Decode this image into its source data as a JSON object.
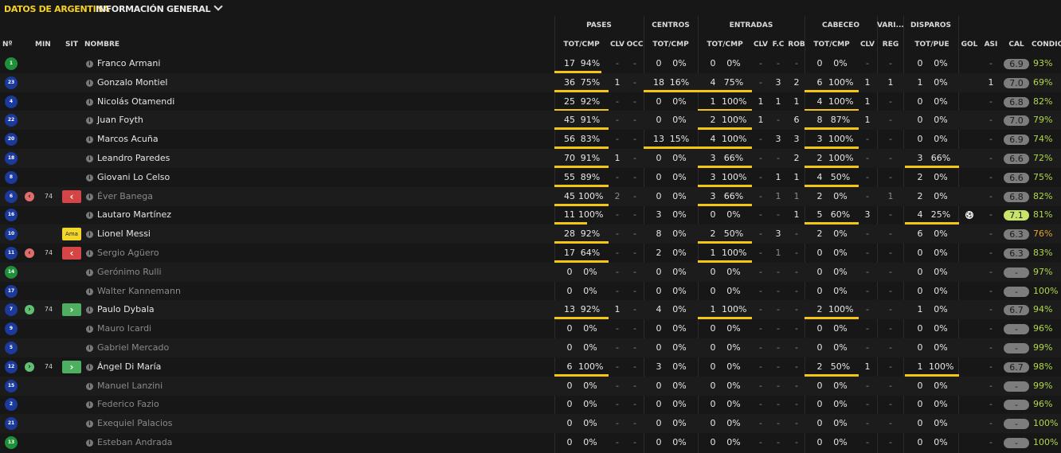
{
  "header": {
    "title": "DATOS DE ARGENTINA",
    "dropdown_label": "INFORMACIÓN GENERAL"
  },
  "groups": {
    "pases": "PASES",
    "centros": "CENTROS",
    "entradas": "ENTRADAS",
    "cabeceo": "CABECEO",
    "varios": "VARI...",
    "disparos": "DISPAROS"
  },
  "columns": {
    "num": "Nº",
    "min": "MIN",
    "sit": "SIT",
    "nombre": "NOMBRE",
    "pases_tot": "TOT/CMP",
    "pases_clv": "CLV",
    "pases_occ": "OCC",
    "centros_tot": "TOT/CMP",
    "entradas_tot": "TOT/CMP",
    "entradas_clv": "CLV",
    "entradas_fc": "F.C",
    "entradas_rob": "ROB",
    "cabeceo_tot": "TOT/CMP",
    "cabeceo_clv": "CLV",
    "varios_reg": "REG",
    "disparos_tot": "TOT/PUE",
    "gol": "GOL",
    "asi": "ASI",
    "cal": "CAL",
    "condic": "CONDIC"
  },
  "colors": {
    "accent": "#f7d21f",
    "bar": "#f3c616",
    "sub_out": "#d64545",
    "sub_in": "#4daf5f",
    "condition_green": "#b0d84a",
    "condition_orange": "#e3a532"
  },
  "players": [
    {
      "num": "1",
      "kit": "green",
      "name": "Franco Armani",
      "active": true,
      "sub": "",
      "min": "",
      "sit": "",
      "pas_t": "17",
      "pas_p": "94%",
      "pas_frac": 0.87,
      "pas_clv": "-",
      "pas_occ": "-",
      "cen_t": "0",
      "cen_p": "0%",
      "cen_frac": 0,
      "ent_t": "0",
      "ent_p": "0%",
      "ent_frac": 0,
      "ent_clv": "-",
      "ent_fc": "-",
      "ent_rob": "-",
      "cab_t": "0",
      "cab_p": "0%",
      "cab_frac": 0,
      "cab_clv": "-",
      "reg": "-",
      "dis_t": "0",
      "dis_p": "0%",
      "dis_frac": 0,
      "gol": "",
      "asi": "-",
      "cal": "6.9",
      "cond": "93%"
    },
    {
      "num": "23",
      "kit": "blue",
      "name": "Gonzalo Montiel",
      "active": true,
      "sub": "",
      "min": "",
      "sit": "",
      "pas_t": "36",
      "pas_p": "75%",
      "pas_frac": 1,
      "pas_clv": "1",
      "pas_occ": "-",
      "cen_t": "18",
      "cen_p": "16%",
      "cen_frac": 1,
      "ent_t": "4",
      "ent_p": "75%",
      "ent_frac": 1,
      "ent_clv": "-",
      "ent_fc": "3",
      "ent_rob": "2",
      "cab_t": "6",
      "cab_p": "100%",
      "cab_frac": 1,
      "cab_clv": "1",
      "reg": "1",
      "dis_t": "1",
      "dis_p": "0%",
      "dis_frac": 0,
      "gol": "",
      "asi": "1",
      "cal": "7.0",
      "cond": "69%"
    },
    {
      "num": "4",
      "kit": "blue",
      "name": "Nicolás Otamendi",
      "active": true,
      "sub": "",
      "min": "",
      "sit": "",
      "pas_t": "25",
      "pas_p": "92%",
      "pas_frac": 1,
      "pas_clv": "-",
      "pas_occ": "-",
      "cen_t": "0",
      "cen_p": "0%",
      "cen_frac": 0,
      "ent_t": "1",
      "ent_p": "100%",
      "ent_frac": 1,
      "ent_clv": "1",
      "ent_fc": "1",
      "ent_rob": "1",
      "cab_t": "4",
      "cab_p": "100%",
      "cab_frac": 1,
      "cab_clv": "1",
      "reg": "-",
      "dis_t": "0",
      "dis_p": "0%",
      "dis_frac": 0,
      "gol": "",
      "asi": "-",
      "cal": "6.8",
      "cond": "82%"
    },
    {
      "num": "22",
      "kit": "blue",
      "name": "Juan Foyth",
      "active": true,
      "sub": "",
      "min": "",
      "sit": "",
      "pas_t": "45",
      "pas_p": "91%",
      "pas_frac": 1,
      "pas_clv": "-",
      "pas_occ": "-",
      "cen_t": "0",
      "cen_p": "0%",
      "cen_frac": 0,
      "ent_t": "2",
      "ent_p": "100%",
      "ent_frac": 1,
      "ent_clv": "1",
      "ent_fc": "-",
      "ent_rob": "6",
      "cab_t": "8",
      "cab_p": "87%",
      "cab_frac": 1,
      "cab_clv": "1",
      "reg": "-",
      "dis_t": "0",
      "dis_p": "0%",
      "dis_frac": 0,
      "gol": "",
      "asi": "-",
      "cal": "7.0",
      "cond": "79%"
    },
    {
      "num": "20",
      "kit": "blue",
      "name": "Marcos Acuña",
      "active": true,
      "sub": "",
      "min": "",
      "sit": "",
      "pas_t": "56",
      "pas_p": "83%",
      "pas_frac": 1,
      "pas_clv": "-",
      "pas_occ": "-",
      "cen_t": "13",
      "cen_p": "15%",
      "cen_frac": 1,
      "ent_t": "4",
      "ent_p": "100%",
      "ent_frac": 1,
      "ent_clv": "-",
      "ent_fc": "3",
      "ent_rob": "3",
      "cab_t": "3",
      "cab_p": "100%",
      "cab_frac": 1,
      "cab_clv": "-",
      "reg": "-",
      "dis_t": "0",
      "dis_p": "0%",
      "dis_frac": 0,
      "gol": "",
      "asi": "-",
      "cal": "6.9",
      "cond": "74%"
    },
    {
      "num": "18",
      "kit": "blue",
      "name": "Leandro Paredes",
      "active": true,
      "sub": "",
      "min": "",
      "sit": "",
      "pas_t": "70",
      "pas_p": "91%",
      "pas_frac": 1,
      "pas_clv": "1",
      "pas_occ": "-",
      "cen_t": "0",
      "cen_p": "0%",
      "cen_frac": 0,
      "ent_t": "3",
      "ent_p": "66%",
      "ent_frac": 1,
      "ent_clv": "-",
      "ent_fc": "-",
      "ent_rob": "2",
      "cab_t": "2",
      "cab_p": "100%",
      "cab_frac": 1,
      "cab_clv": "-",
      "reg": "-",
      "dis_t": "3",
      "dis_p": "66%",
      "dis_frac": 1,
      "gol": "",
      "asi": "-",
      "cal": "6.6",
      "cond": "72%"
    },
    {
      "num": "8",
      "kit": "blue",
      "name": "Giovani Lo Celso",
      "active": true,
      "sub": "",
      "min": "",
      "sit": "",
      "pas_t": "55",
      "pas_p": "89%",
      "pas_frac": 1,
      "pas_clv": "-",
      "pas_occ": "-",
      "cen_t": "0",
      "cen_p": "0%",
      "cen_frac": 0,
      "ent_t": "3",
      "ent_p": "100%",
      "ent_frac": 1,
      "ent_clv": "-",
      "ent_fc": "1",
      "ent_rob": "1",
      "cab_t": "4",
      "cab_p": "50%",
      "cab_frac": 1,
      "cab_clv": "-",
      "reg": "-",
      "dis_t": "2",
      "dis_p": "0%",
      "dis_frac": 0,
      "gol": "",
      "asi": "-",
      "cal": "6.6",
      "cond": "75%"
    },
    {
      "num": "6",
      "kit": "blue",
      "name": "Éver Banega",
      "active": false,
      "sub": "out",
      "min": "74",
      "sit": "out",
      "pas_t": "45",
      "pas_p": "100%",
      "pas_frac": 1,
      "pas_clv": "2",
      "pas_occ": "-",
      "cen_t": "0",
      "cen_p": "0%",
      "cen_frac": 0,
      "ent_t": "3",
      "ent_p": "66%",
      "ent_frac": 1,
      "ent_clv": "-",
      "ent_fc": "1",
      "ent_rob": "1",
      "cab_t": "2",
      "cab_p": "0%",
      "cab_frac": 0,
      "cab_clv": "-",
      "reg": "1",
      "dis_t": "2",
      "dis_p": "0%",
      "dis_frac": 0,
      "gol": "",
      "asi": "-",
      "cal": "6.8",
      "cond": "82%"
    },
    {
      "num": "16",
      "kit": "blue",
      "name": "Lautaro Martínez",
      "active": true,
      "sub": "",
      "min": "",
      "sit": "",
      "pas_t": "11",
      "pas_p": "100%",
      "pas_frac": 0.6,
      "pas_clv": "-",
      "pas_occ": "-",
      "cen_t": "3",
      "cen_p": "0%",
      "cen_frac": 0,
      "ent_t": "0",
      "ent_p": "0%",
      "ent_frac": 0,
      "ent_clv": "-",
      "ent_fc": "-",
      "ent_rob": "1",
      "cab_t": "5",
      "cab_p": "60%",
      "cab_frac": 1,
      "cab_clv": "3",
      "reg": "-",
      "dis_t": "4",
      "dis_p": "25%",
      "dis_frac": 1,
      "gol": "ball",
      "asi": "-",
      "cal": "7.1",
      "cond": "81%",
      "cal_hi": true
    },
    {
      "num": "10",
      "kit": "blue",
      "name": "Lionel Messi",
      "active": true,
      "sub": "",
      "min": "",
      "sit": "ama",
      "sit_label": "Ama",
      "pas_t": "28",
      "pas_p": "92%",
      "pas_frac": 1,
      "pas_clv": "-",
      "pas_occ": "-",
      "cen_t": "8",
      "cen_p": "0%",
      "cen_frac": 0,
      "ent_t": "2",
      "ent_p": "50%",
      "ent_frac": 1,
      "ent_clv": "-",
      "ent_fc": "3",
      "ent_rob": "-",
      "cab_t": "2",
      "cab_p": "0%",
      "cab_frac": 0,
      "cab_clv": "-",
      "reg": "-",
      "dis_t": "6",
      "dis_p": "0%",
      "dis_frac": 0,
      "gol": "",
      "asi": "-",
      "cal": "6.3",
      "cond": "76%",
      "cond_orange": true
    },
    {
      "num": "11",
      "kit": "blue",
      "name": "Sergio Agüero",
      "active": false,
      "sub": "out",
      "min": "74",
      "sit": "out",
      "pas_t": "17",
      "pas_p": "64%",
      "pas_frac": 1,
      "pas_clv": "-",
      "pas_occ": "-",
      "cen_t": "2",
      "cen_p": "0%",
      "cen_frac": 0,
      "ent_t": "1",
      "ent_p": "100%",
      "ent_frac": 1,
      "ent_clv": "-",
      "ent_fc": "1",
      "ent_rob": "-",
      "cab_t": "0",
      "cab_p": "0%",
      "cab_frac": 0,
      "cab_clv": "-",
      "reg": "-",
      "dis_t": "0",
      "dis_p": "0%",
      "dis_frac": 0,
      "gol": "",
      "asi": "-",
      "cal": "6.3",
      "cond": "83%"
    },
    {
      "num": "14",
      "kit": "green",
      "name": "Gerónimo Rulli",
      "active": false,
      "sub": "",
      "min": "",
      "sit": "",
      "pas_t": "0",
      "pas_p": "0%",
      "pas_frac": 0,
      "pas_clv": "-",
      "pas_occ": "-",
      "cen_t": "0",
      "cen_p": "0%",
      "cen_frac": 0,
      "ent_t": "0",
      "ent_p": "0%",
      "ent_frac": 0,
      "ent_clv": "-",
      "ent_fc": "-",
      "ent_rob": "-",
      "cab_t": "0",
      "cab_p": "0%",
      "cab_frac": 0,
      "cab_clv": "-",
      "reg": "-",
      "dis_t": "0",
      "dis_p": "0%",
      "dis_frac": 0,
      "gol": "",
      "asi": "-",
      "cal": "-",
      "cond": "97%"
    },
    {
      "num": "17",
      "kit": "blue",
      "name": "Walter Kannemann",
      "active": false,
      "sub": "",
      "min": "",
      "sit": "",
      "pas_t": "0",
      "pas_p": "0%",
      "pas_frac": 0,
      "pas_clv": "-",
      "pas_occ": "-",
      "cen_t": "0",
      "cen_p": "0%",
      "cen_frac": 0,
      "ent_t": "0",
      "ent_p": "0%",
      "ent_frac": 0,
      "ent_clv": "-",
      "ent_fc": "-",
      "ent_rob": "-",
      "cab_t": "0",
      "cab_p": "0%",
      "cab_frac": 0,
      "cab_clv": "-",
      "reg": "-",
      "dis_t": "0",
      "dis_p": "0%",
      "dis_frac": 0,
      "gol": "",
      "asi": "-",
      "cal": "-",
      "cond": "100%"
    },
    {
      "num": "7",
      "kit": "blue",
      "name": "Paulo Dybala",
      "active": true,
      "sub": "in",
      "min": "74",
      "sit": "in",
      "pas_t": "13",
      "pas_p": "92%",
      "pas_frac": 1,
      "pas_clv": "1",
      "pas_occ": "-",
      "cen_t": "4",
      "cen_p": "0%",
      "cen_frac": 0,
      "ent_t": "1",
      "ent_p": "100%",
      "ent_frac": 1,
      "ent_clv": "-",
      "ent_fc": "-",
      "ent_rob": "-",
      "cab_t": "2",
      "cab_p": "100%",
      "cab_frac": 1,
      "cab_clv": "-",
      "reg": "-",
      "dis_t": "1",
      "dis_p": "0%",
      "dis_frac": 0,
      "gol": "",
      "asi": "-",
      "cal": "6.7",
      "cond": "94%"
    },
    {
      "num": "9",
      "kit": "blue",
      "name": "Mauro Icardi",
      "active": false,
      "sub": "",
      "min": "",
      "sit": "",
      "pas_t": "0",
      "pas_p": "0%",
      "pas_frac": 0,
      "pas_clv": "-",
      "pas_occ": "-",
      "cen_t": "0",
      "cen_p": "0%",
      "cen_frac": 0,
      "ent_t": "0",
      "ent_p": "0%",
      "ent_frac": 0,
      "ent_clv": "-",
      "ent_fc": "-",
      "ent_rob": "-",
      "cab_t": "0",
      "cab_p": "0%",
      "cab_frac": 0,
      "cab_clv": "-",
      "reg": "-",
      "dis_t": "0",
      "dis_p": "0%",
      "dis_frac": 0,
      "gol": "",
      "asi": "-",
      "cal": "-",
      "cond": "96%"
    },
    {
      "num": "5",
      "kit": "blue",
      "name": "Gabriel Mercado",
      "active": false,
      "sub": "",
      "min": "",
      "sit": "",
      "pas_t": "0",
      "pas_p": "0%",
      "pas_frac": 0,
      "pas_clv": "-",
      "pas_occ": "-",
      "cen_t": "0",
      "cen_p": "0%",
      "cen_frac": 0,
      "ent_t": "0",
      "ent_p": "0%",
      "ent_frac": 0,
      "ent_clv": "-",
      "ent_fc": "-",
      "ent_rob": "-",
      "cab_t": "0",
      "cab_p": "0%",
      "cab_frac": 0,
      "cab_clv": "-",
      "reg": "-",
      "dis_t": "0",
      "dis_p": "0%",
      "dis_frac": 0,
      "gol": "",
      "asi": "-",
      "cal": "-",
      "cond": "99%"
    },
    {
      "num": "12",
      "kit": "blue",
      "name": "Ángel Di María",
      "active": true,
      "sub": "in",
      "min": "74",
      "sit": "in",
      "pas_t": "6",
      "pas_p": "100%",
      "pas_frac": 1,
      "pas_clv": "-",
      "pas_occ": "-",
      "cen_t": "3",
      "cen_p": "0%",
      "cen_frac": 0,
      "ent_t": "0",
      "ent_p": "0%",
      "ent_frac": 0,
      "ent_clv": "-",
      "ent_fc": "-",
      "ent_rob": "-",
      "cab_t": "2",
      "cab_p": "50%",
      "cab_frac": 1,
      "cab_clv": "1",
      "reg": "-",
      "dis_t": "1",
      "dis_p": "100%",
      "dis_frac": 1,
      "gol": "",
      "asi": "-",
      "cal": "6.7",
      "cond": "98%"
    },
    {
      "num": "15",
      "kit": "blue",
      "name": "Manuel Lanzini",
      "active": false,
      "sub": "",
      "min": "",
      "sit": "",
      "pas_t": "0",
      "pas_p": "0%",
      "pas_frac": 0,
      "pas_clv": "-",
      "pas_occ": "-",
      "cen_t": "0",
      "cen_p": "0%",
      "cen_frac": 0,
      "ent_t": "0",
      "ent_p": "0%",
      "ent_frac": 0,
      "ent_clv": "-",
      "ent_fc": "-",
      "ent_rob": "-",
      "cab_t": "0",
      "cab_p": "0%",
      "cab_frac": 0,
      "cab_clv": "-",
      "reg": "-",
      "dis_t": "0",
      "dis_p": "0%",
      "dis_frac": 0,
      "gol": "",
      "asi": "-",
      "cal": "-",
      "cond": "99%"
    },
    {
      "num": "2",
      "kit": "blue",
      "name": "Federico Fazio",
      "active": false,
      "sub": "",
      "min": "",
      "sit": "",
      "pas_t": "0",
      "pas_p": "0%",
      "pas_frac": 0,
      "pas_clv": "-",
      "pas_occ": "-",
      "cen_t": "0",
      "cen_p": "0%",
      "cen_frac": 0,
      "ent_t": "0",
      "ent_p": "0%",
      "ent_frac": 0,
      "ent_clv": "-",
      "ent_fc": "-",
      "ent_rob": "-",
      "cab_t": "0",
      "cab_p": "0%",
      "cab_frac": 0,
      "cab_clv": "-",
      "reg": "-",
      "dis_t": "0",
      "dis_p": "0%",
      "dis_frac": 0,
      "gol": "",
      "asi": "-",
      "cal": "-",
      "cond": "96%"
    },
    {
      "num": "21",
      "kit": "blue",
      "name": "Exequiel Palacios",
      "active": false,
      "sub": "",
      "min": "",
      "sit": "",
      "pas_t": "0",
      "pas_p": "0%",
      "pas_frac": 0,
      "pas_clv": "-",
      "pas_occ": "-",
      "cen_t": "0",
      "cen_p": "0%",
      "cen_frac": 0,
      "ent_t": "0",
      "ent_p": "0%",
      "ent_frac": 0,
      "ent_clv": "-",
      "ent_fc": "-",
      "ent_rob": "-",
      "cab_t": "0",
      "cab_p": "0%",
      "cab_frac": 0,
      "cab_clv": "-",
      "reg": "-",
      "dis_t": "0",
      "dis_p": "0%",
      "dis_frac": 0,
      "gol": "",
      "asi": "-",
      "cal": "-",
      "cond": "100%"
    },
    {
      "num": "13",
      "kit": "green",
      "name": "Esteban Andrada",
      "active": false,
      "sub": "",
      "min": "",
      "sit": "",
      "pas_t": "0",
      "pas_p": "0%",
      "pas_frac": 0,
      "pas_clv": "-",
      "pas_occ": "-",
      "cen_t": "0",
      "cen_p": "0%",
      "cen_frac": 0,
      "ent_t": "0",
      "ent_p": "0%",
      "ent_frac": 0,
      "ent_clv": "-",
      "ent_fc": "-",
      "ent_rob": "-",
      "cab_t": "0",
      "cab_p": "0%",
      "cab_frac": 0,
      "cab_clv": "-",
      "reg": "-",
      "dis_t": "0",
      "dis_p": "0%",
      "dis_frac": 0,
      "gol": "",
      "asi": "-",
      "cal": "-",
      "cond": "100%"
    }
  ]
}
